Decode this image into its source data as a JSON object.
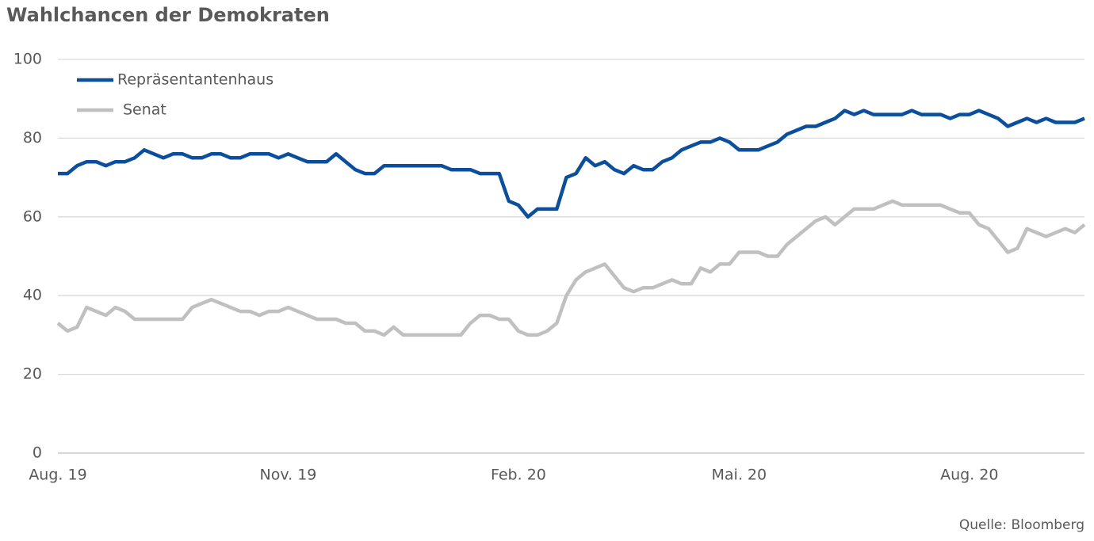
{
  "chart_data": {
    "type": "line",
    "title": "Wahlchancen der Demokraten",
    "source": "Quelle: Bloomberg",
    "categories": [
      "Aug. 19",
      null,
      null,
      null,
      null,
      null,
      null,
      null,
      null,
      null,
      null,
      null,
      null,
      null,
      null,
      null,
      null,
      null,
      null,
      null,
      null,
      null,
      null,
      null,
      "Nov. 19",
      null,
      null,
      null,
      null,
      null,
      null,
      null,
      null,
      null,
      null,
      null,
      null,
      null,
      null,
      null,
      null,
      null,
      null,
      null,
      null,
      null,
      null,
      null,
      "Feb. 20",
      null,
      null,
      null,
      null,
      null,
      null,
      null,
      null,
      null,
      null,
      null,
      null,
      null,
      null,
      null,
      null,
      null,
      null,
      null,
      null,
      null,
      null,
      "Mai. 20",
      null,
      null,
      null,
      null,
      null,
      null,
      null,
      null,
      null,
      null,
      null,
      null,
      null,
      null,
      null,
      null,
      null,
      null,
      null,
      null,
      null,
      null,
      null,
      "Aug. 20",
      null,
      null,
      null,
      null,
      null,
      null,
      null,
      null,
      null,
      null,
      null,
      null
    ],
    "series": [
      {
        "name": "Repräsentantenhaus",
        "color": "#0b4f9c",
        "values": [
          71,
          71,
          73,
          74,
          74,
          73,
          74,
          74,
          75,
          77,
          76,
          75,
          76,
          76,
          75,
          75,
          76,
          76,
          75,
          75,
          76,
          76,
          76,
          75,
          76,
          75,
          74,
          74,
          74,
          76,
          74,
          72,
          71,
          71,
          73,
          73,
          73,
          73,
          73,
          73,
          73,
          72,
          72,
          72,
          71,
          71,
          71,
          64,
          63,
          60,
          62,
          62,
          62,
          70,
          71,
          75,
          73,
          74,
          72,
          71,
          73,
          72,
          72,
          74,
          75,
          77,
          78,
          79,
          79,
          80,
          79,
          77,
          77,
          77,
          78,
          79,
          81,
          82,
          83,
          83,
          84,
          85,
          87,
          86,
          87,
          86,
          86,
          86,
          86,
          87,
          86,
          86,
          86,
          85,
          86,
          86,
          87,
          86,
          85,
          83,
          84,
          85,
          84,
          85,
          84,
          84,
          84,
          85
        ]
      },
      {
        "name": "Senat",
        "color": "#c0c0c0",
        "values": [
          33,
          31,
          32,
          37,
          36,
          35,
          37,
          36,
          34,
          34,
          34,
          34,
          34,
          34,
          37,
          38,
          39,
          38,
          37,
          36,
          36,
          35,
          36,
          36,
          37,
          36,
          35,
          34,
          34,
          34,
          33,
          33,
          31,
          31,
          30,
          32,
          30,
          30,
          30,
          30,
          30,
          30,
          30,
          33,
          35,
          35,
          34,
          34,
          31,
          30,
          30,
          31,
          33,
          40,
          44,
          46,
          47,
          48,
          45,
          42,
          41,
          42,
          42,
          43,
          44,
          43,
          43,
          47,
          46,
          48,
          48,
          51,
          51,
          51,
          50,
          50,
          53,
          55,
          57,
          59,
          60,
          58,
          60,
          62,
          62,
          62,
          63,
          64,
          63,
          63,
          63,
          63,
          63,
          62,
          61,
          61,
          58,
          57,
          54,
          51,
          52,
          57,
          56,
          55,
          56,
          57,
          56,
          58
        ]
      }
    ],
    "ylim": [
      0,
      100
    ],
    "yticks": [
      0,
      20,
      40,
      60,
      80,
      100
    ],
    "grid": true,
    "legend": "upper left"
  }
}
